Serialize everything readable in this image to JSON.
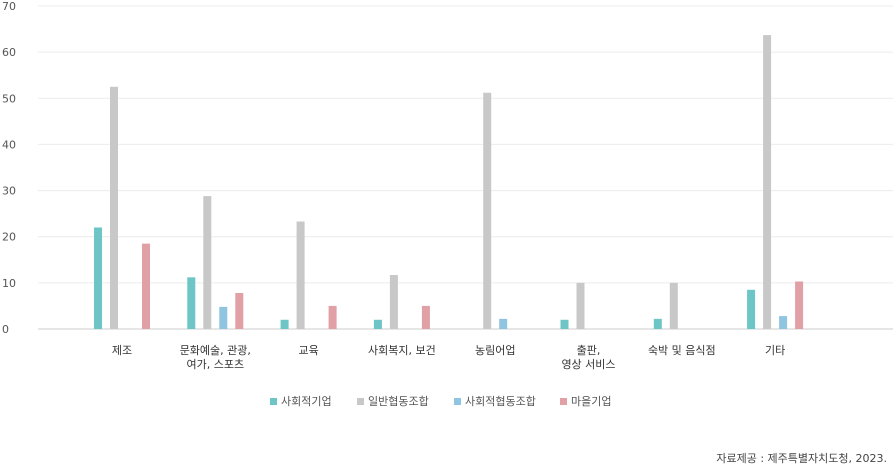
{
  "chart_data": {
    "type": "bar",
    "categories": [
      [
        "제조"
      ],
      [
        "문화예술, 관광,",
        "여가, 스포츠"
      ],
      [
        "교육"
      ],
      [
        "사회복지, 보건"
      ],
      [
        "농림어업"
      ],
      [
        "출판,",
        "영상 서비스"
      ],
      [
        "숙박 및 음식점"
      ],
      [
        "기타"
      ]
    ],
    "series": [
      {
        "name": "사회적기업",
        "color": "#6dc5c5",
        "values": [
          22,
          11.2,
          2,
          2,
          0,
          2,
          2.2,
          8.5
        ]
      },
      {
        "name": "일반협동조합",
        "color": "#c8c8c8",
        "values": [
          52.5,
          28.8,
          23.3,
          11.7,
          51.2,
          10,
          10,
          63.7
        ]
      },
      {
        "name": "사회적협동조합",
        "color": "#8fc5e0",
        "values": [
          0,
          4.8,
          0,
          0,
          2.2,
          0,
          0,
          2.8
        ]
      },
      {
        "name": "마을기업",
        "color": "#e0a0a6",
        "values": [
          18.5,
          7.8,
          5,
          5,
          0,
          0,
          0,
          10.3
        ]
      }
    ],
    "ylim": [
      0,
      70
    ],
    "yticks": [
      0,
      10,
      20,
      30,
      40,
      50,
      60,
      70
    ],
    "grid": true,
    "legend_position": "bottom-center"
  },
  "source_text": "자료제공 : 제주특별자치도청, 2023."
}
